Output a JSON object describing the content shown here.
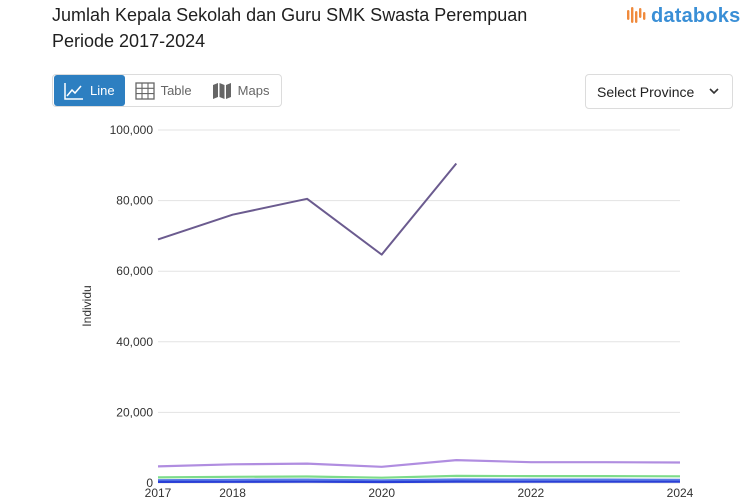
{
  "header": {
    "title": "Jumlah Kepala Sekolah dan Guru SMK Swasta Perempuan Periode 2017-2024",
    "logo_text": "databoks"
  },
  "tabs": [
    {
      "label": "Line",
      "icon": "line-chart-icon",
      "active": true
    },
    {
      "label": "Table",
      "icon": "table-icon",
      "active": false
    },
    {
      "label": "Maps",
      "icon": "map-icon",
      "active": false
    }
  ],
  "province_select": {
    "label": "Select Province",
    "icon": "chevron-down-icon"
  },
  "colors": {
    "accent": "#2d7fc1",
    "logo": "#3a8fd6"
  },
  "chart_data": {
    "type": "line",
    "ylabel": "Individu",
    "ylim": [
      0,
      100000
    ],
    "yticks": [
      0,
      20000,
      40000,
      60000,
      80000,
      100000
    ],
    "ytick_labels": [
      "0",
      "20,000",
      "40,000",
      "60,000",
      "80,000",
      "100,000"
    ],
    "xlim": [
      2017,
      2024
    ],
    "xtick_labels": [
      "2017",
      "2018",
      "2020",
      "2022",
      "2024"
    ],
    "xtick_positions": [
      2017,
      2018,
      2020,
      2022,
      2024
    ],
    "x": [
      2017,
      2018,
      2019,
      2020,
      2021,
      2022,
      2023,
      2024
    ],
    "grid": true,
    "series": [
      {
        "color": "#6b5b8f",
        "values": [
          69000,
          76000,
          80500,
          64700,
          90500,
          null,
          null,
          null
        ]
      },
      {
        "color": "#b08de0",
        "values": [
          4700,
          5300,
          5500,
          4600,
          6500,
          5900,
          5900,
          5800
        ]
      },
      {
        "color": "#7ddc8a",
        "values": [
          1600,
          1750,
          1850,
          1500,
          2000,
          1950,
          1950,
          1900
        ]
      },
      {
        "color": "#5a7de8",
        "values": [
          800,
          900,
          950,
          750,
          1000,
          950,
          950,
          900
        ]
      },
      {
        "color": "#2a3fd6",
        "values": [
          300,
          350,
          380,
          280,
          400,
          380,
          380,
          360
        ]
      }
    ]
  }
}
